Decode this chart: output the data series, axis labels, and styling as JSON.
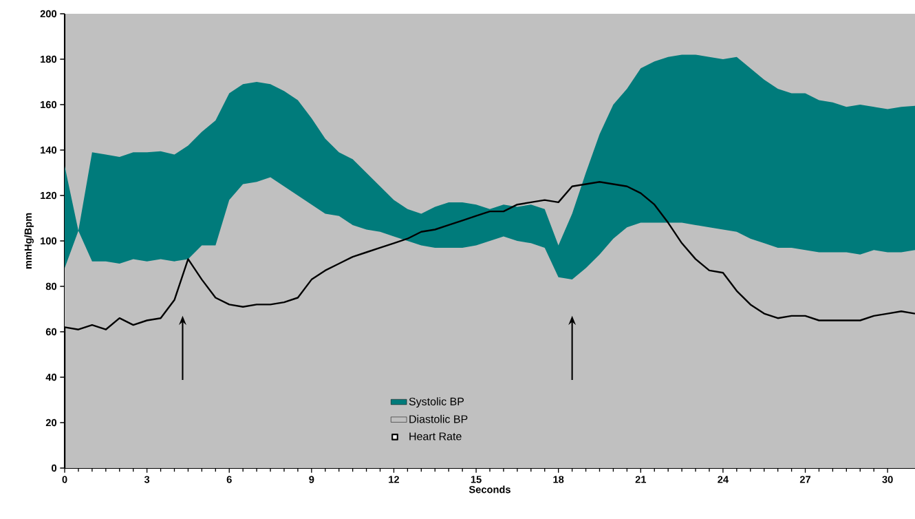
{
  "chart_data": {
    "type": "area",
    "xlabel": "Seconds",
    "ylabel": "mmHg/Bpm",
    "x": [
      0,
      0.5,
      1,
      1.5,
      2,
      2.5,
      3,
      3.5,
      4,
      4.5,
      5,
      5.5,
      6,
      6.5,
      7,
      7.5,
      8,
      8.5,
      9,
      9.5,
      10,
      10.5,
      11,
      11.5,
      12,
      12.5,
      13,
      13.5,
      14,
      14.5,
      15,
      15.5,
      16,
      16.5,
      17,
      17.5,
      18,
      18.5,
      19,
      19.5,
      20,
      20.5,
      21,
      21.5,
      22,
      22.5,
      23,
      23.5,
      24,
      24.5,
      25,
      25.5,
      26,
      26.5,
      27,
      27.5,
      28,
      28.5,
      29,
      29.5,
      30,
      30.5,
      31
    ],
    "series": [
      {
        "name": "Systolic BP",
        "color": "#007b7b",
        "values": [
          133,
          104.5,
          139,
          138,
          137,
          139,
          139,
          139.5,
          138,
          142,
          148,
          153,
          165,
          169,
          170,
          169,
          166,
          162,
          154,
          145,
          139,
          136,
          130,
          124,
          118,
          114,
          112,
          115,
          117,
          117,
          116,
          114,
          116,
          115,
          116,
          114,
          98,
          112,
          130,
          147,
          160,
          167,
          176,
          179,
          181,
          182,
          182,
          181,
          180,
          181,
          176,
          171,
          167,
          165,
          165,
          162,
          161,
          159,
          160,
          159,
          158,
          159,
          159.5
        ]
      },
      {
        "name": "Diastolic BP",
        "color": "#c0c0c0",
        "values": [
          88,
          104.5,
          91,
          91,
          90,
          92,
          91,
          92,
          91,
          92,
          98,
          98,
          118,
          125,
          126,
          128,
          124,
          120,
          116,
          112,
          111,
          107,
          105,
          104,
          102,
          100,
          98,
          97,
          97,
          97,
          98,
          100,
          102,
          100,
          99,
          97,
          84,
          83,
          88,
          94,
          101,
          106,
          108,
          108,
          108,
          108,
          107,
          106,
          105,
          104,
          101,
          99,
          97,
          97,
          96,
          95,
          95,
          95,
          94,
          96,
          95,
          95,
          96
        ]
      },
      {
        "name": "Heart Rate",
        "type": "line",
        "color": "#000000",
        "x": [
          0,
          0,
          0.5,
          1,
          1.5,
          2,
          2.5,
          3,
          3.5,
          4,
          4.5,
          5,
          5.5,
          6,
          6.5,
          7,
          7.5,
          8,
          8.5,
          9,
          9.5,
          10,
          10.5,
          11,
          11.5,
          12,
          12.5,
          13,
          13.5,
          14,
          14.5,
          15,
          15.5,
          16,
          16.5,
          17,
          17.5,
          18,
          18.5,
          19,
          19.5,
          20,
          20.5,
          21,
          21.5,
          22,
          22.5,
          23,
          23.5,
          24,
          24.5,
          25,
          25.5,
          26,
          26.5,
          27,
          27.5,
          28,
          28.5,
          29,
          29.5,
          30,
          30.5,
          31
        ],
        "values": [
          0,
          62,
          61,
          63,
          61,
          66,
          63,
          65,
          66,
          74,
          92,
          83,
          75,
          72,
          71,
          72,
          72,
          73,
          75,
          83,
          87,
          90,
          93,
          95,
          97,
          99,
          101,
          104,
          105,
          107,
          109,
          111,
          113,
          113,
          116,
          117,
          118,
          117,
          124,
          125,
          126,
          125,
          124,
          121,
          116,
          108,
          99,
          92,
          87,
          86,
          78,
          72,
          68,
          66,
          67,
          67,
          65,
          65,
          65,
          65,
          67,
          68,
          69,
          68
        ]
      }
    ],
    "xlim": [
      0,
      31
    ],
    "xticks": [
      0,
      3,
      6,
      9,
      12,
      15,
      18,
      21,
      24,
      27,
      30
    ],
    "ylim": [
      0,
      200
    ],
    "yticks": [
      0,
      20,
      40,
      60,
      80,
      100,
      120,
      140,
      160,
      180,
      200
    ],
    "legend": "bottom"
  }
}
